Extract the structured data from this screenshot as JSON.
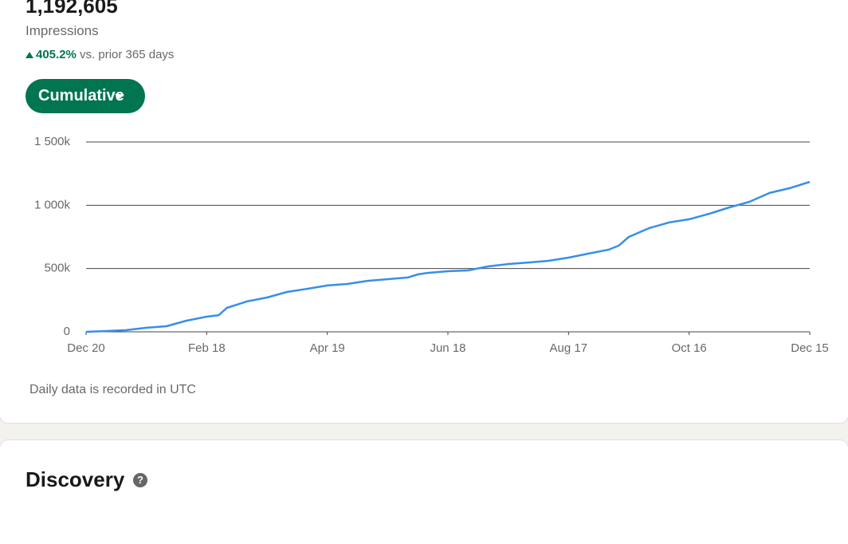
{
  "header": {
    "value": "1,192,605",
    "label": "Impressions",
    "change": "405.2%",
    "comparison": "vs. prior 365 days",
    "button": "Cumulative"
  },
  "chart_data": {
    "type": "line",
    "color": "#378fe9",
    "grid": true,
    "x": [
      0,
      10,
      20,
      30,
      40,
      50,
      60,
      66,
      70,
      80,
      90,
      100,
      110,
      120,
      130,
      140,
      150,
      160,
      165,
      170,
      180,
      190,
      200,
      210,
      220,
      230,
      240,
      250,
      260,
      265,
      270,
      280,
      290,
      300,
      310,
      320,
      330,
      340,
      350,
      360
    ],
    "values": [
      0,
      6000,
      13000,
      32000,
      44000,
      88000,
      120000,
      132000,
      189000,
      240000,
      271000,
      315000,
      340000,
      366000,
      378000,
      403000,
      416000,
      429000,
      454000,
      466000,
      479000,
      485000,
      517000,
      536000,
      548000,
      561000,
      586000,
      618000,
      649000,
      681000,
      750000,
      819000,
      864000,
      889000,
      933000,
      983000,
      1027000,
      1097000,
      1135000,
      1185000
    ],
    "xlim": [
      0,
      360
    ],
    "xticks": [
      {
        "value": 0,
        "label": "Dec 20"
      },
      {
        "value": 60,
        "label": "Feb 18"
      },
      {
        "value": 120,
        "label": "Apr 19"
      },
      {
        "value": 180,
        "label": "Jun 18"
      },
      {
        "value": 240,
        "label": "Aug 17"
      },
      {
        "value": 300,
        "label": "Oct 16"
      },
      {
        "value": 360,
        "label": "Dec 15"
      }
    ],
    "ylim": [
      0,
      1500000
    ],
    "yticks": [
      0,
      {
        "value": 500000,
        "label": "500k"
      },
      {
        "value": 1000000,
        "label": "1 000k"
      },
      {
        "value": 1500000,
        "label": "1 500k"
      }
    ]
  },
  "footnote": "Daily data is recorded in UTC",
  "section": {
    "title": "Discovery"
  }
}
